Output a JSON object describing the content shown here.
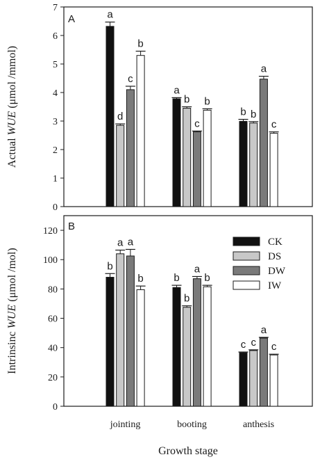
{
  "chart_data": [
    {
      "type": "bar",
      "panel_label": "A",
      "ylabel": "Actual WUE (μmol /mmol)",
      "ylabel_parts": {
        "before": "Actual ",
        "italic": "WUE",
        "after": " (μmol /mmol)"
      },
      "ylim": [
        0,
        7
      ],
      "yticks": [
        "0",
        "1",
        "2",
        "3",
        "4",
        "5",
        "6",
        "7"
      ],
      "categories": [
        "jointing",
        "booting",
        "anthesis"
      ],
      "series": [
        {
          "name": "CK",
          "color": "#111111",
          "values": [
            6.32,
            3.78,
            2.99
          ],
          "errors": [
            0.15,
            0.04,
            0.07
          ],
          "letters": [
            "a",
            "a",
            "b"
          ]
        },
        {
          "name": "DS",
          "color": "#c8c8c8",
          "values": [
            2.85,
            3.45,
            2.93
          ],
          "errors": [
            0.05,
            0.05,
            0.05
          ],
          "letters": [
            "d",
            "b",
            "b"
          ]
        },
        {
          "name": "DW",
          "color": "#7a7a7a",
          "values": [
            4.1,
            2.62,
            4.47
          ],
          "errors": [
            0.12,
            0.03,
            0.1
          ],
          "letters": [
            "c",
            "c",
            "a"
          ]
        },
        {
          "name": "IW",
          "color": "#ffffff",
          "values": [
            5.3,
            3.38,
            2.57
          ],
          "errors": [
            0.15,
            0.05,
            0.05
          ],
          "letters": [
            "b",
            "b",
            "c"
          ]
        }
      ]
    },
    {
      "type": "bar",
      "panel_label": "B",
      "ylabel": "Intrinsinc WUE (μmol /mol)",
      "ylabel_parts": {
        "before": "Intrinsinc ",
        "italic": "WUE",
        "after": " (μmol /mol)"
      },
      "ylim": [
        0,
        130
      ],
      "yticks": [
        "0",
        "20",
        "40",
        "60",
        "80",
        "100",
        "120"
      ],
      "categories": [
        "jointing",
        "booting",
        "anthesis"
      ],
      "series": [
        {
          "name": "CK",
          "color": "#111111",
          "values": [
            88,
            81,
            36.5
          ],
          "errors": [
            2.5,
            1.5,
            0.5
          ],
          "letters": [
            "b",
            "b",
            "c"
          ]
        },
        {
          "name": "DS",
          "color": "#c8c8c8",
          "values": [
            104,
            67.5,
            38
          ],
          "errors": [
            2.5,
            1,
            0.5
          ],
          "letters": [
            "a",
            "b",
            "c"
          ]
        },
        {
          "name": "DW",
          "color": "#7a7a7a",
          "values": [
            102.5,
            87,
            46.5
          ],
          "errors": [
            4.5,
            1.5,
            0.5
          ],
          "letters": [
            "a",
            "a",
            "a"
          ]
        },
        {
          "name": "IW",
          "color": "#ffffff",
          "values": [
            79.5,
            81.5,
            35
          ],
          "errors": [
            2.5,
            1,
            0.5
          ],
          "letters": [
            "b",
            "b",
            "c"
          ]
        }
      ],
      "legend": {
        "placement": "top-right",
        "entries": [
          "CK",
          "DS",
          "DW",
          "IW"
        ]
      }
    }
  ],
  "xlabel": "Growth stage",
  "category_labels": [
    "jointing",
    "booting",
    "anthesis"
  ]
}
